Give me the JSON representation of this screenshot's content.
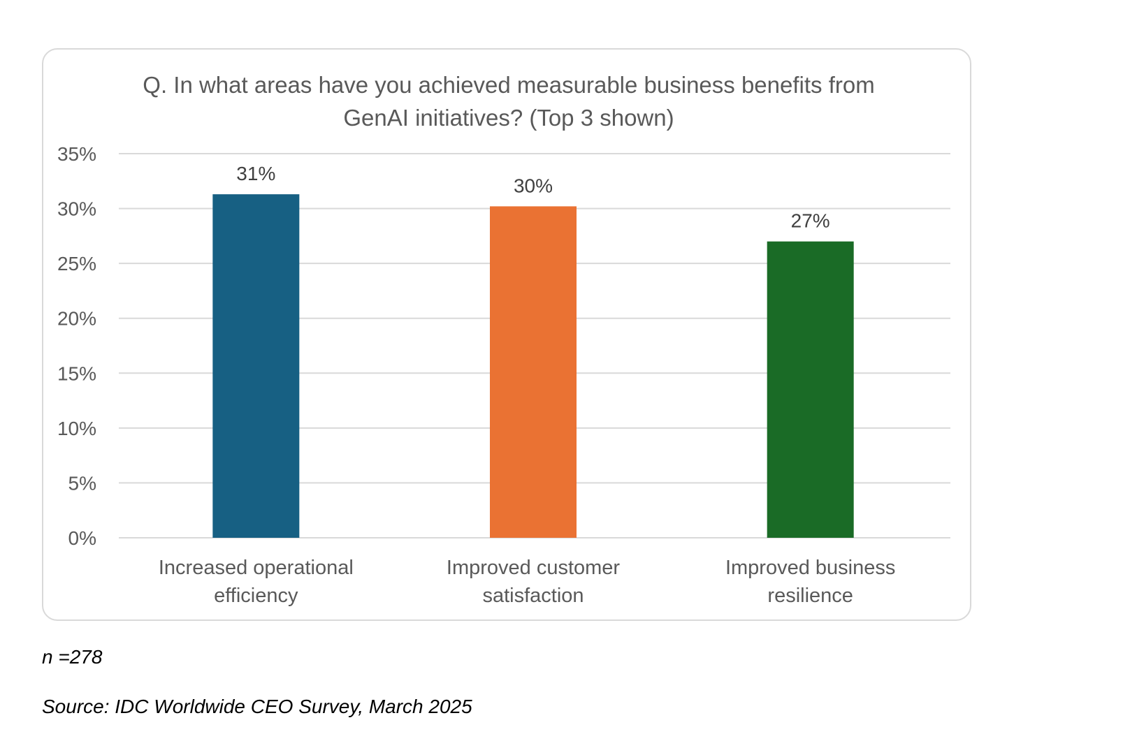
{
  "chart_data": {
    "type": "bar",
    "title": "Q. In what areas have you achieved measurable business benefits from GenAI initiatives? (Top 3 shown)",
    "categories": [
      [
        "Increased operational",
        "efficiency"
      ],
      [
        "Improved customer",
        "satisfaction"
      ],
      [
        "Improved business",
        "resilience"
      ]
    ],
    "values": [
      31.3,
      30.2,
      27.0
    ],
    "data_labels": [
      "31%",
      "30%",
      "27%"
    ],
    "colors": [
      "#176083",
      "#ea7233",
      "#1a6b26"
    ],
    "ylim": [
      0,
      35
    ],
    "yticks": [
      0,
      5,
      10,
      15,
      20,
      25,
      30,
      35
    ],
    "ytick_labels": [
      "0%",
      "5%",
      "10%",
      "15%",
      "20%",
      "25%",
      "30%",
      "35%"
    ],
    "grid": true,
    "legend": "none",
    "xlabel": "",
    "ylabel": ""
  },
  "notes": {
    "n": "n =278",
    "source": "Source: IDC Worldwide CEO Survey, March 2025"
  }
}
